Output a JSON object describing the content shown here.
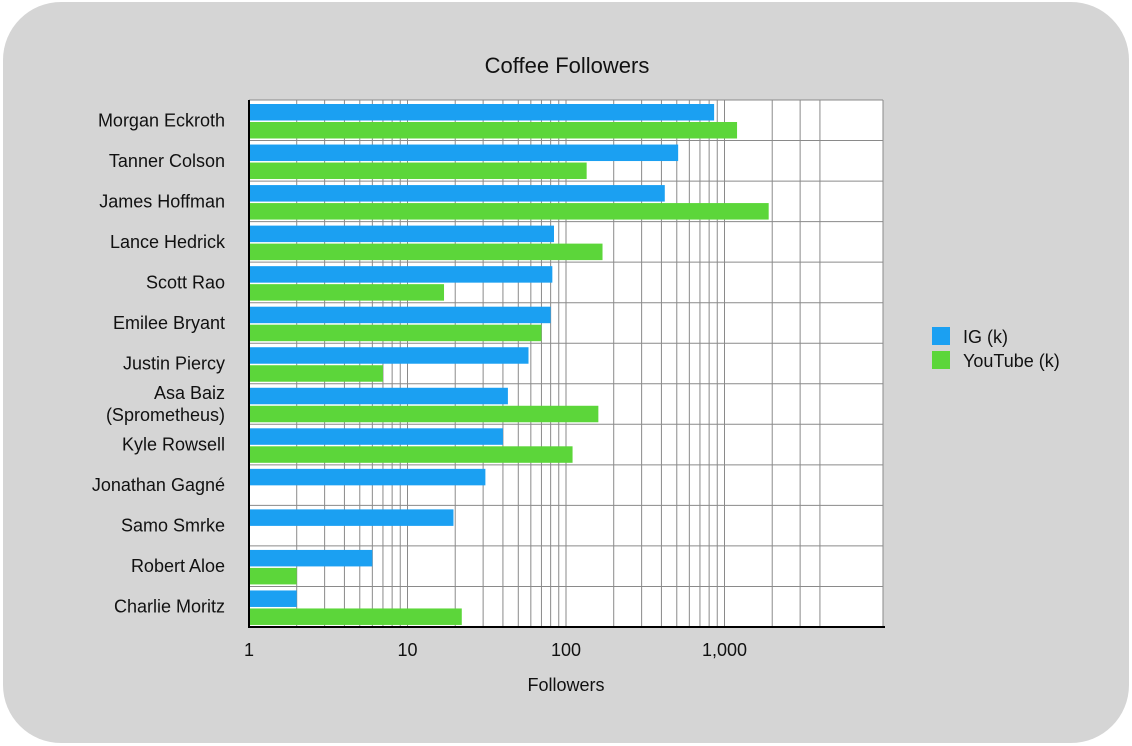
{
  "chart_data": {
    "type": "bar",
    "orientation": "horizontal",
    "title": "Coffee Followers",
    "xlabel": "Followers",
    "ylabel": "",
    "xscale": "log",
    "xlim": [
      1,
      4000
    ],
    "xticks": [
      {
        "value": 1,
        "label": "1"
      },
      {
        "value": 10,
        "label": "10"
      },
      {
        "value": 100,
        "label": "100"
      },
      {
        "value": 1000,
        "label": "1,000"
      }
    ],
    "grid": true,
    "legend_position": "right",
    "categories": [
      [
        "Morgan Eckroth"
      ],
      [
        "Tanner Colson"
      ],
      [
        "James Hoffman"
      ],
      [
        "Lance Hedrick"
      ],
      [
        "Scott Rao"
      ],
      [
        "Emilee Bryant"
      ],
      [
        "Justin Piercy"
      ],
      [
        "Asa Baiz",
        "(Sprometheus)"
      ],
      [
        "Kyle Rowsell"
      ],
      [
        "Jonathan Gagné"
      ],
      [
        "Samo Smrke"
      ],
      [
        "Robert Aloe"
      ],
      [
        "Charlie Moritz"
      ]
    ],
    "series": [
      {
        "name": "IG (k)",
        "color": "#1ba0f2",
        "values": [
          860,
          510,
          420,
          84,
          82,
          80,
          58,
          43,
          40,
          31,
          19.5,
          6,
          2
        ]
      },
      {
        "name": "YouTube (k)",
        "color": "#5cd63a",
        "values": [
          1200,
          135,
          1900,
          170,
          17,
          70,
          7,
          160,
          110,
          null,
          null,
          2,
          22
        ]
      }
    ]
  }
}
